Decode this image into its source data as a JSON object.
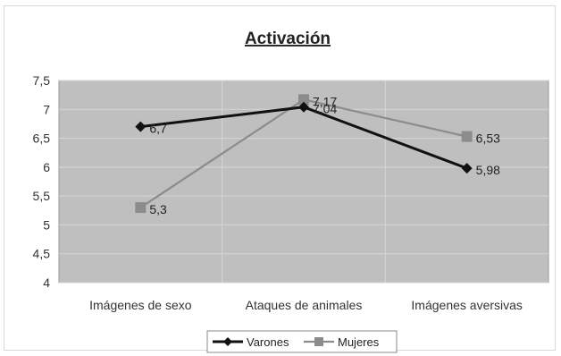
{
  "chart_data": {
    "type": "line",
    "title": "Activación",
    "xlabel": "",
    "ylabel": "",
    "categories": [
      "Imágenes de sexo",
      "Ataques de animales",
      "Imágenes aversivas"
    ],
    "ylim": [
      4,
      7.5
    ],
    "yticks": [
      "4",
      "4,5",
      "5",
      "5,5",
      "6",
      "6,5",
      "7",
      "7,5"
    ],
    "ytick_values": [
      4,
      4.5,
      5,
      5.5,
      6,
      6.5,
      7,
      7.5
    ],
    "grid": true,
    "legend_position": "bottom",
    "series": [
      {
        "name": "Varones",
        "values": [
          6.7,
          7.04,
          5.98
        ],
        "labels": [
          "6,7",
          "7,04",
          "5,98"
        ],
        "color": "#111111",
        "marker": "diamond"
      },
      {
        "name": "Mujeres",
        "values": [
          5.3,
          7.17,
          6.53
        ],
        "labels": [
          "5,3",
          "7,17",
          "6,53"
        ],
        "color": "#8c8c8c",
        "marker": "square"
      }
    ],
    "plot_background": "#bfbfbf"
  }
}
